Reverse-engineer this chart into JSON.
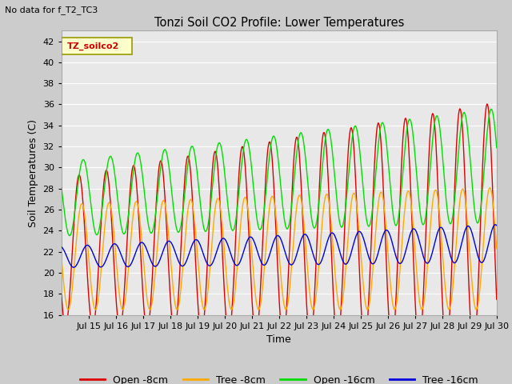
{
  "title": "Tonzi Soil CO2 Profile: Lower Temperatures",
  "subtitle": "No data for f_T2_TC3",
  "xlabel": "Time",
  "ylabel": "Soil Temperatures (C)",
  "ylim": [
    16,
    43
  ],
  "yticks": [
    16,
    18,
    20,
    22,
    24,
    26,
    28,
    30,
    32,
    34,
    36,
    38,
    40,
    42
  ],
  "x_tick_labels": [
    "Jul 15",
    "Jul 16",
    "Jul 17",
    "Jul 18",
    "Jul 19",
    "Jul 20",
    "Jul 21",
    "Jul 22",
    "Jul 23",
    "Jul 24",
    "Jul 25",
    "Jul 26",
    "Jul 27",
    "Jul 28",
    "Jul 29",
    "Jul 30"
  ],
  "colors": {
    "open_8cm": "#dd0000",
    "tree_8cm": "#ffaa00",
    "open_16cm": "#00dd00",
    "tree_16cm": "#0000dd"
  },
  "legend_label": "TZ_soilco2",
  "bg_color": "#e8e8e8",
  "grid_color": "#ffffff",
  "fig_bg": "#cccccc"
}
